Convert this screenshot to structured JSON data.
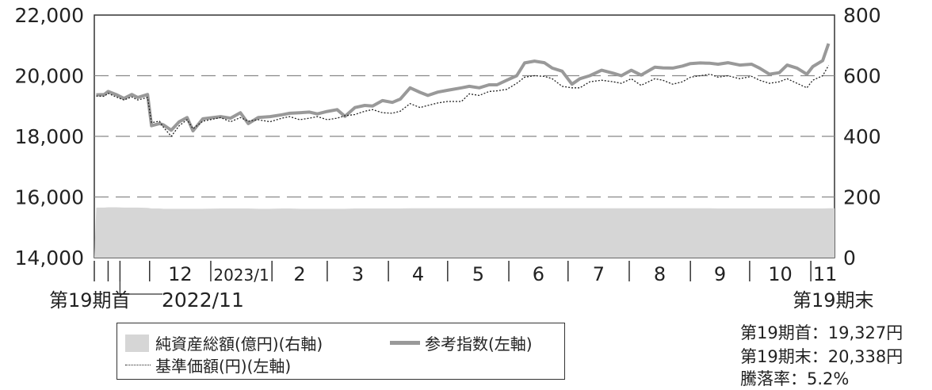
{
  "chart_data": {
    "type": "line",
    "y_left": {
      "min": 14000,
      "max": 22000,
      "ticks": [
        "14,000",
        "16,000",
        "18,000",
        "20,000",
        "22,000"
      ]
    },
    "y_right": {
      "min": 0,
      "max": 800,
      "ticks": [
        "0",
        "200",
        "400",
        "600",
        "800"
      ]
    },
    "grid": "dashed horizontal at 16,000 / 18,000 / 20,000",
    "x": [
      "2022-11-04",
      "2022-11-08",
      "2022-11-10",
      "2022-11-14",
      "2022-11-18",
      "2022-11-22",
      "2022-11-25",
      "2022-11-30",
      "2022-12-02",
      "2022-12-06",
      "2022-12-08",
      "2022-12-12",
      "2022-12-16",
      "2022-12-20",
      "2022-12-23",
      "2022-12-28",
      "2023-01-06",
      "2023-01-11",
      "2023-01-16",
      "2023-01-20",
      "2023-01-25",
      "2023-01-31",
      "2023-02-06",
      "2023-02-10",
      "2023-02-15",
      "2023-02-20",
      "2023-02-24",
      "2023-03-01",
      "2023-03-06",
      "2023-03-10",
      "2023-03-15",
      "2023-03-20",
      "2023-03-24",
      "2023-03-29",
      "2023-04-03",
      "2023-04-07",
      "2023-04-12",
      "2023-04-17",
      "2023-04-21",
      "2023-04-26",
      "2023-05-01",
      "2023-05-08",
      "2023-05-12",
      "2023-05-17",
      "2023-05-22",
      "2023-05-26",
      "2023-05-31",
      "2023-06-05",
      "2023-06-09",
      "2023-06-14",
      "2023-06-19",
      "2023-06-23",
      "2023-06-28",
      "2023-07-03",
      "2023-07-07",
      "2023-07-12",
      "2023-07-18",
      "2023-07-24",
      "2023-07-28",
      "2023-08-02",
      "2023-08-07",
      "2023-08-14",
      "2023-08-18",
      "2023-08-23",
      "2023-08-28",
      "2023-09-01",
      "2023-09-06",
      "2023-09-11",
      "2023-09-15",
      "2023-09-20",
      "2023-09-26",
      "2023-10-02",
      "2023-10-06",
      "2023-10-11",
      "2023-10-16",
      "2023-10-20",
      "2023-10-25",
      "2023-10-30",
      "2023-11-02",
      "2023-11-07",
      "2023-11-10"
    ],
    "series": [
      {
        "name": "参考指数(左軸)",
        "axis": "left",
        "values": [
          19370,
          19380,
          19480,
          19380,
          19250,
          19380,
          19280,
          19380,
          18350,
          18420,
          18380,
          18200,
          18480,
          18620,
          18180,
          18580,
          18650,
          18600,
          18780,
          18420,
          18620,
          18650,
          18710,
          18760,
          18780,
          18800,
          18740,
          18820,
          18880,
          18660,
          18950,
          19020,
          19000,
          19180,
          19120,
          19230,
          19600,
          19450,
          19350,
          19460,
          19520,
          19600,
          19650,
          19600,
          19700,
          19700,
          19850,
          20000,
          20420,
          20480,
          20430,
          20250,
          20150,
          19720,
          19900,
          20000,
          20180,
          20080,
          20000,
          20180,
          20020,
          20280,
          20260,
          20250,
          20320,
          20400,
          20420,
          20410,
          20380,
          20430,
          20350,
          20380,
          20250,
          20050,
          20100,
          20350,
          20250,
          20050,
          20300,
          20500,
          21060
        ]
      },
      {
        "name": "基準価額(円)(左軸)",
        "axis": "left",
        "values": [
          19327,
          19320,
          19420,
          19300,
          19200,
          19300,
          19200,
          19280,
          18450,
          18500,
          18300,
          18000,
          18350,
          18550,
          18250,
          18500,
          18620,
          18480,
          18620,
          18500,
          18550,
          18480,
          18600,
          18650,
          18550,
          18600,
          18650,
          18550,
          18600,
          18680,
          18720,
          18830,
          18880,
          18780,
          18760,
          18830,
          19080,
          18950,
          19020,
          19100,
          19150,
          19150,
          19400,
          19350,
          19480,
          19500,
          19550,
          19750,
          19950,
          20000,
          19980,
          19900,
          19650,
          19600,
          19600,
          19800,
          19850,
          19800,
          19750,
          19900,
          19680,
          19900,
          19850,
          19720,
          19800,
          19950,
          20000,
          20050,
          19950,
          20000,
          19900,
          19980,
          19850,
          19750,
          19800,
          19900,
          19750,
          19600,
          19850,
          20000,
          20338
        ]
      },
      {
        "name": "純資産総額(億円)(右軸)",
        "axis": "right",
        "values": [
          165,
          165,
          166,
          166,
          165,
          165,
          165,
          164,
          162,
          162,
          161,
          161,
          161,
          161,
          161,
          161,
          162,
          162,
          162,
          162,
          161,
          161,
          162,
          162,
          161,
          161,
          161,
          161,
          161,
          161,
          162,
          162,
          162,
          162,
          162,
          162,
          163,
          163,
          163,
          163,
          163,
          163,
          163,
          163,
          163,
          163,
          163,
          163,
          163,
          163,
          163,
          163,
          163,
          163,
          163,
          163,
          163,
          163,
          163,
          163,
          163,
          163,
          163,
          163,
          163,
          163,
          163,
          163,
          162,
          162,
          162,
          162,
          162,
          162,
          162,
          162,
          162,
          162,
          162,
          162,
          163
        ]
      }
    ],
    "x_ticks": [
      "12",
      "2023/1",
      "2",
      "3",
      "4",
      "5",
      "6",
      "7",
      "8",
      "9",
      "10",
      "11"
    ],
    "x_bottom_labels": [
      "第19期首",
      "2022/11",
      "第19期末"
    ]
  },
  "legend": {
    "fill_label": "純資産総額(億円)(右軸)",
    "solid_label": "参考指数(左軸)",
    "dotted_label": "基準価額(円)(左軸)"
  },
  "notes": {
    "start": "第19期首：19,327円",
    "end": "第19期末：20,338円",
    "change": "騰落率：5.2%"
  },
  "colors": {
    "fill": "#d6d6d6",
    "solid": "#999999",
    "dotted": "#222222",
    "grid": "#888888",
    "frame": "#333333"
  }
}
